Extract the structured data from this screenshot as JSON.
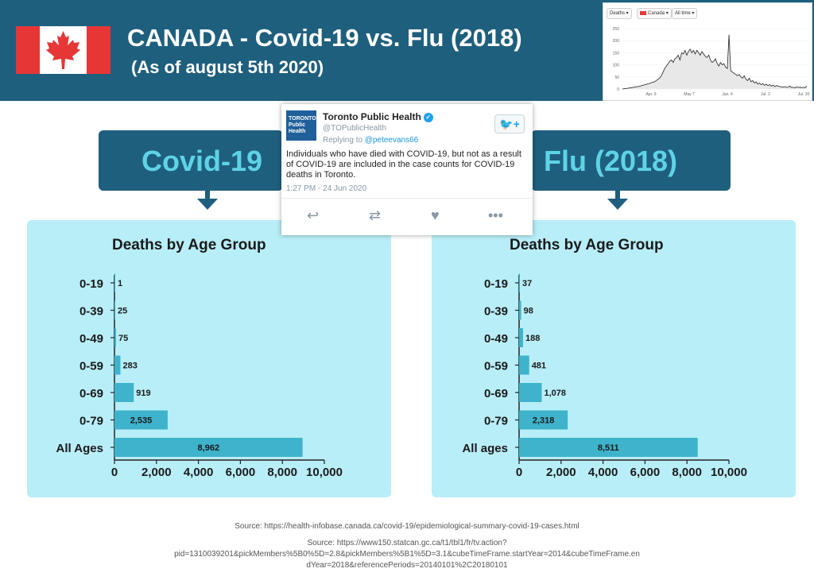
{
  "header": {
    "title": "CANADA - Covid-19 vs. Flu (2018)",
    "subtitle": "(As of august 5th 2020)",
    "colors": {
      "header_bg": "#1f5f7e",
      "flag_red": "#e63636",
      "banner_text": "#5fd3e6",
      "panel_bg": "#b8eef8",
      "bar": "#3fb3cc"
    }
  },
  "thumbnail": {
    "filters": [
      "Deaths",
      "Canada",
      "All time"
    ],
    "y_ticks": [
      "250",
      "200",
      "150",
      "100",
      "50",
      "0"
    ],
    "x_ticks": [
      "Apr. 9",
      "May 7",
      "Jun. 4",
      "Jul. 2",
      "Jul. 30"
    ],
    "series": [
      0,
      1,
      2,
      3,
      4,
      5,
      6,
      8,
      9,
      10,
      11,
      13,
      15,
      17,
      19,
      21,
      23,
      26,
      28,
      30,
      35,
      40,
      45,
      55,
      70,
      85,
      95,
      105,
      115,
      120,
      110,
      125,
      130,
      140,
      120,
      150,
      145,
      160,
      140,
      155,
      165,
      150,
      160,
      145,
      160,
      150,
      140,
      155,
      145,
      135,
      130,
      140,
      120,
      110,
      115,
      125,
      105,
      95,
      110,
      100,
      105,
      90,
      85,
      225,
      75,
      70,
      65,
      60,
      55,
      60,
      50,
      45,
      55,
      40,
      35,
      45,
      30,
      35,
      25,
      30,
      20,
      25,
      18,
      22,
      15,
      20,
      14,
      18,
      12,
      16,
      10,
      14,
      12,
      10,
      9,
      8,
      10,
      7,
      8,
      12,
      6,
      7,
      5,
      9,
      6,
      8,
      5,
      7,
      6,
      12
    ]
  },
  "banners": {
    "left": "Covid-19",
    "right": "Flu (2018)"
  },
  "tweet": {
    "avatar_text": "TORONTO Public Health",
    "name": "Toronto Public Health",
    "handle": "@TOPublicHealth",
    "replying_prefix": "Replying to",
    "replying_to": "@peteevans66",
    "text": "Individuals who have died with COVID-19, but not as a result of COVID-19 are included in the case counts for COVID-19 deaths in Toronto.",
    "time": "1:27 PM - 24 Jun 2020",
    "icons": [
      "twitter-follow-icon",
      "reply-icon",
      "retweet-icon",
      "like-icon",
      "more-icon"
    ]
  },
  "chart_data": [
    {
      "type": "bar",
      "orientation": "horizontal",
      "title": "Deaths by Age Group",
      "categories": [
        "0-19",
        "0-39",
        "0-49",
        "0-59",
        "0-69",
        "0-79",
        "All Ages"
      ],
      "values": [
        1,
        25,
        75,
        283,
        919,
        2535,
        8962
      ],
      "value_labels": [
        "1",
        "25",
        "75",
        "283",
        "919",
        "2,535",
        "8,962"
      ],
      "xlim": [
        0,
        10000
      ],
      "x_ticks": [
        "0",
        "2,000",
        "4,000",
        "6,000",
        "8,000",
        "10,000"
      ],
      "grid": false,
      "color": "#3fb3cc"
    },
    {
      "type": "bar",
      "orientation": "horizontal",
      "title": "Deaths by Age Group",
      "categories": [
        "0-19",
        "0-39",
        "0-49",
        "0-59",
        "0-69",
        "0-79",
        "All ages"
      ],
      "values": [
        37,
        98,
        188,
        481,
        1078,
        2318,
        8511
      ],
      "value_labels": [
        "37",
        "98",
        "188",
        "481",
        "1,078",
        "2,318",
        "8,511"
      ],
      "xlim": [
        0,
        10000
      ],
      "x_ticks": [
        "0",
        "2,000",
        "4,000",
        "6,000",
        "8,000",
        "10,000"
      ],
      "grid": false,
      "color": "#3fb3cc"
    }
  ],
  "sources": {
    "line1": "Source: https://health-infobase.canada.ca/covid-19/epidemiological-summary-covid-19-cases.html",
    "line2a": "Source: https://www150.statcan.gc.ca/t1/tbl1/fr/tv.action?",
    "line2b": "pid=1310039201&pickMembers%5B0%5D=2.8&pickMembers%5B1%5D=3.1&cubeTimeFrame.startYear=2014&cubeTimeFrame.en",
    "line2c": "dYear=2018&referencePeriods=20140101%2C20180101"
  }
}
